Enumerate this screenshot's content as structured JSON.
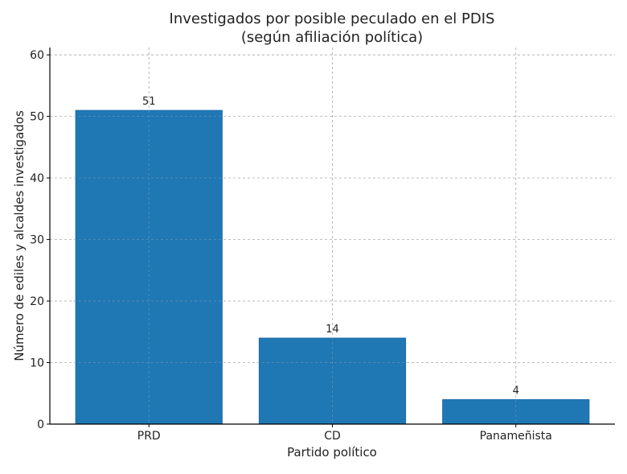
{
  "chart_data": {
    "type": "bar",
    "title": "Investigados por posible peculado en el PDIS\n(según afiliación política)",
    "xlabel": "Partido político",
    "ylabel": "Número de ediles y alcaldes investigados",
    "categories": [
      "PRD",
      "CD",
      "Panameñista"
    ],
    "values": [
      51,
      14,
      4
    ],
    "data_labels": [
      "51",
      "14",
      "4"
    ],
    "ylim": [
      0,
      61.2
    ],
    "yticks": [
      0,
      10,
      20,
      30,
      40,
      50,
      60
    ],
    "grid": true,
    "bar_color": "#1f77b4"
  }
}
